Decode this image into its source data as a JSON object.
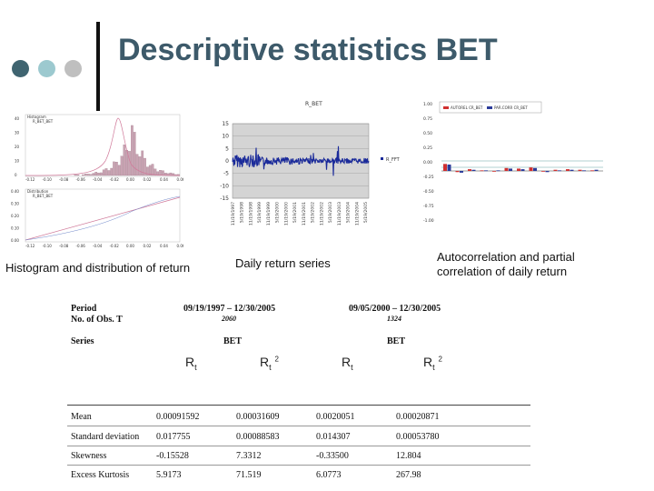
{
  "slide": {
    "title": "Descriptive statistics BET",
    "colors": {
      "title": "#3d5a6a",
      "dot1": "#3f6470",
      "dot2": "#9cc9cf",
      "dot3": "#bfbfbf"
    }
  },
  "captions": {
    "histogram": "Histogram and distribution of return",
    "daily": "Daily return series",
    "acf": "Autocorrelation and partial correlation of daily return"
  },
  "histogram": {
    "legend_top": [
      "Histogram",
      "R_BET_BET"
    ],
    "legend_bottom": [
      "Distribution",
      "R_BET_BET"
    ],
    "top_yticks": [
      "40",
      "30",
      "20",
      "10",
      "0"
    ],
    "top_xticks": [
      "-0.12",
      "-0.10",
      "-0.08",
      "-0.06",
      "-0.04",
      "-0.02",
      "0.00",
      "0.02",
      "0.04",
      "0.06"
    ],
    "bottom_yticks": [
      "0.40",
      "0.30",
      "0.20",
      "0.10",
      "0.00"
    ],
    "bottom_xticks": [
      "-0.12",
      "-0.10",
      "-0.08",
      "-0.06",
      "-0.04",
      "-0.02",
      "0.00",
      "0.02",
      "0.04",
      "0.06"
    ]
  },
  "daily_chart": {
    "title": "R_BET",
    "yticks": [
      "15",
      "10",
      "5",
      "0",
      "-5",
      "-10",
      "-15"
    ],
    "legend": "R_FFT",
    "xticks": [
      "11/19/1997",
      "5/19/1998",
      "11/19/1998",
      "5/19/1999",
      "11/19/1999",
      "5/19/2000",
      "11/19/2000",
      "5/19/2001",
      "11/19/2001",
      "5/19/2002",
      "11/19/2002",
      "5/19/2003",
      "11/19/2003",
      "5/19/2004",
      "11/19/2004",
      "5/19/2005"
    ]
  },
  "acf_chart": {
    "legend": [
      "AUTOREL CR_BET",
      "PAR.CORR CR_BET"
    ],
    "yticks": [
      "1.00",
      "0.75",
      "0.50",
      "0.25",
      "0.00",
      "-0.25",
      "-0.50",
      "-0.75",
      "-1.00"
    ]
  },
  "table": {
    "period_label": "Period",
    "obs_label": "No. of Obs. T",
    "series_label": "Series",
    "period1": "09/19/1997 – 12/30/2005",
    "obs1": "2060",
    "period2": "09/05/2000 – 12/30/2005",
    "obs2": "1324",
    "series1": "BET",
    "series2": "BET",
    "col_r": "R",
    "col_sub": "t",
    "col_sq": "2",
    "rows": [
      {
        "label": "Mean",
        "values": [
          "0.00091592",
          "0.00031609",
          "0.0020051",
          "0.00020871"
        ]
      },
      {
        "label": "Standard deviation",
        "values": [
          "0.017755",
          "0.00088583",
          "0.014307",
          "0.00053780"
        ]
      },
      {
        "label": "Skewness",
        "values": [
          "-0.15528",
          "7.3312",
          "-0.33500",
          "12.804"
        ]
      },
      {
        "label": "Excess Kurtosis",
        "values": [
          "5.9173",
          "71.519",
          "6.0773",
          "267.98"
        ]
      }
    ]
  }
}
